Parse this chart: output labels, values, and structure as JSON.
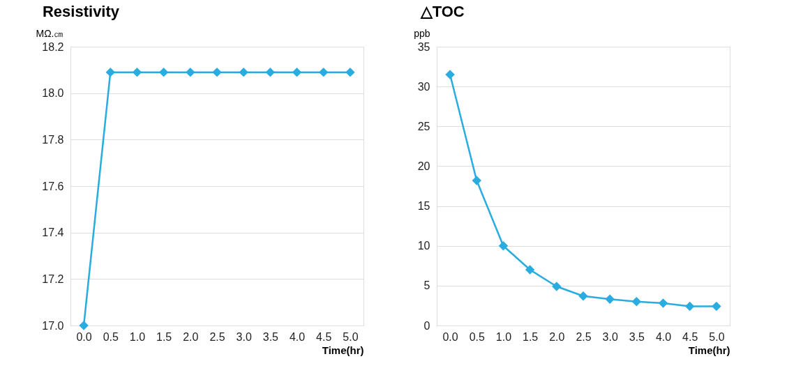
{
  "chart_data": [
    {
      "type": "line",
      "title": "Resistivity",
      "ylabel": "MΩ.㎝",
      "xlabel": "Time(hr)",
      "x": [
        0,
        0.5,
        1,
        1.5,
        2,
        2.5,
        3,
        3.5,
        4,
        4.5,
        5
      ],
      "series": [
        {
          "color": "#29acdf",
          "values": [
            17.0,
            18.09,
            18.09,
            18.09,
            18.09,
            18.09,
            18.09,
            18.09,
            18.09,
            18.09,
            18.09
          ]
        }
      ],
      "xlim": [
        -0.25,
        5.25
      ],
      "xticks": [
        {
          "value": 0,
          "label": "0.0"
        },
        {
          "value": 0.5,
          "label": "0.5"
        },
        {
          "value": 1,
          "label": "1.0"
        },
        {
          "value": 1.5,
          "label": "1.5"
        },
        {
          "value": 2,
          "label": "2.0"
        },
        {
          "value": 2.5,
          "label": "2.5"
        },
        {
          "value": 3,
          "label": "3.0"
        },
        {
          "value": 3.5,
          "label": "3.5"
        },
        {
          "value": 4,
          "label": "4.0"
        },
        {
          "value": 4.5,
          "label": "4.5"
        },
        {
          "value": 5,
          "label": "5.0"
        }
      ],
      "ylim": [
        17.0,
        18.2
      ],
      "yticks": [
        {
          "value": 17.0,
          "label": "17.0"
        },
        {
          "value": 17.2,
          "label": "17.2"
        },
        {
          "value": 17.4,
          "label": "17.4"
        },
        {
          "value": 17.6,
          "label": "17.6"
        },
        {
          "value": 17.8,
          "label": "17.8"
        },
        {
          "value": 18.0,
          "label": "18.0"
        },
        {
          "value": 18.2,
          "label": "18.2"
        }
      ],
      "grid": "y",
      "marker": "diamond",
      "line_style": "solid"
    },
    {
      "type": "line",
      "title": "△TOC",
      "ylabel": "ppb",
      "xlabel": "Time(hr)",
      "x": [
        0,
        0.5,
        1,
        1.5,
        2,
        2.5,
        3,
        3.5,
        4,
        4.5,
        5
      ],
      "series": [
        {
          "color": "#29acdf",
          "values": [
            31.5,
            18.2,
            10.0,
            7.0,
            4.9,
            3.7,
            3.3,
            3.0,
            2.8,
            2.4,
            2.4
          ]
        }
      ],
      "xlim": [
        -0.25,
        5.25
      ],
      "xticks": [
        {
          "value": 0,
          "label": "0.0"
        },
        {
          "value": 0.5,
          "label": "0.5"
        },
        {
          "value": 1,
          "label": "1.0"
        },
        {
          "value": 1.5,
          "label": "1.5"
        },
        {
          "value": 2,
          "label": "2.0"
        },
        {
          "value": 2.5,
          "label": "2.5"
        },
        {
          "value": 3,
          "label": "3.0"
        },
        {
          "value": 3.5,
          "label": "3.5"
        },
        {
          "value": 4,
          "label": "4.0"
        },
        {
          "value": 4.5,
          "label": "4.5"
        },
        {
          "value": 5,
          "label": "5.0"
        }
      ],
      "ylim": [
        0,
        35
      ],
      "yticks": [
        0,
        5,
        10,
        15,
        20,
        25,
        30,
        35
      ],
      "grid": "y",
      "marker": "diamond",
      "line_style": "solid"
    }
  ]
}
